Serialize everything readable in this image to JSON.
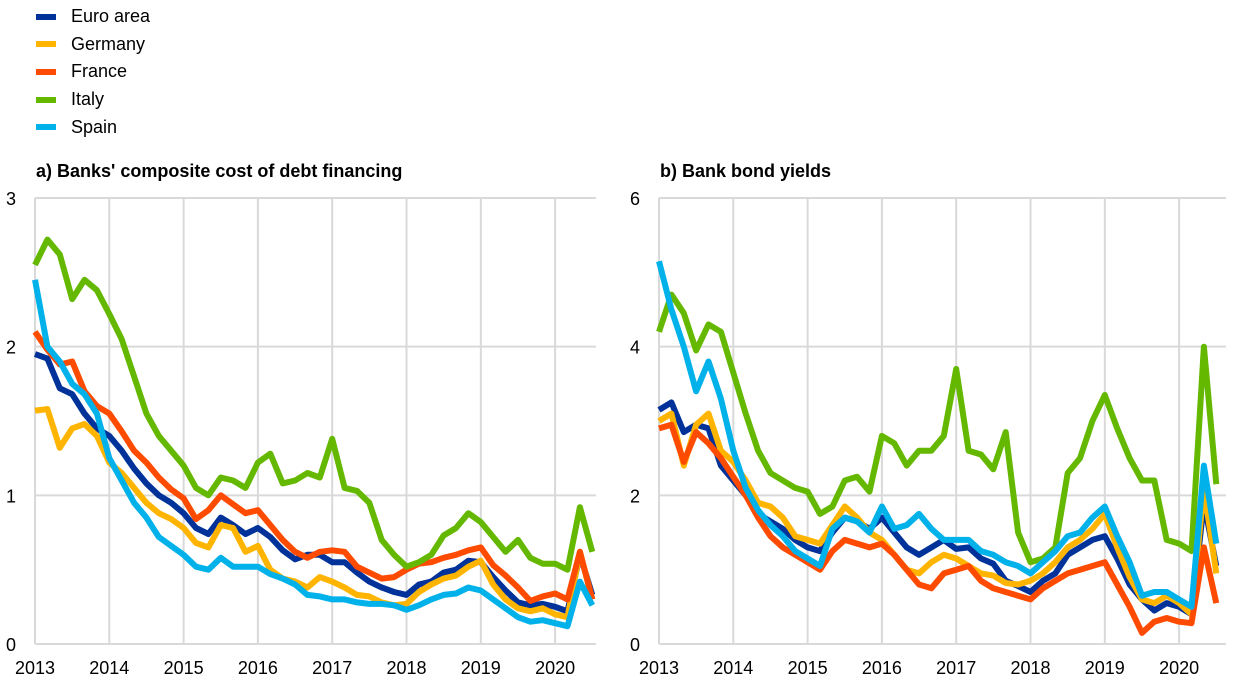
{
  "legend": [
    {
      "name": "Euro area",
      "color": "#003299"
    },
    {
      "name": "Germany",
      "color": "#FFB400"
    },
    {
      "name": "France",
      "color": "#FF4B00"
    },
    {
      "name": "Italy",
      "color": "#65B800"
    },
    {
      "name": "Spain",
      "color": "#00B1EA"
    }
  ],
  "chart_data": [
    {
      "type": "line",
      "title": "a) Banks' composite cost of debt financing",
      "xlabel": "",
      "ylabel": "",
      "xlim": [
        2013,
        2020.58
      ],
      "ylim": [
        0,
        3
      ],
      "xticks": [
        "2013",
        "2014",
        "2015",
        "2016",
        "2017",
        "2018",
        "2019",
        "2020"
      ],
      "yticks": [
        "0",
        "1",
        "2",
        "3"
      ],
      "grid": true,
      "legend_position": "top-left",
      "x_step_note": "bi-monthly from 2013.0",
      "series": [
        {
          "name": "Euro area",
          "values": [
            1.95,
            1.92,
            1.72,
            1.68,
            1.55,
            1.45,
            1.4,
            1.3,
            1.18,
            1.08,
            1.0,
            0.95,
            0.88,
            0.78,
            0.74,
            0.85,
            0.8,
            0.74,
            0.78,
            0.72,
            0.63,
            0.57,
            0.6,
            0.6,
            0.55,
            0.55,
            0.48,
            0.42,
            0.38,
            0.35,
            0.33,
            0.4,
            0.42,
            0.48,
            0.5,
            0.56,
            0.55,
            0.45,
            0.36,
            0.28,
            0.26,
            0.27,
            0.25,
            0.22,
            0.6,
            0.33
          ]
        },
        {
          "name": "Germany",
          "values": [
            1.57,
            1.58,
            1.32,
            1.45,
            1.48,
            1.4,
            1.22,
            1.15,
            1.05,
            0.95,
            0.88,
            0.84,
            0.78,
            0.68,
            0.65,
            0.8,
            0.78,
            0.62,
            0.66,
            0.5,
            0.44,
            0.42,
            0.38,
            0.45,
            0.42,
            0.38,
            0.33,
            0.32,
            0.28,
            0.26,
            0.27,
            0.35,
            0.4,
            0.44,
            0.46,
            0.52,
            0.56,
            0.4,
            0.3,
            0.24,
            0.22,
            0.24,
            0.2,
            0.18,
            0.62,
            0.3
          ]
        },
        {
          "name": "France",
          "values": [
            2.1,
            1.98,
            1.88,
            1.9,
            1.7,
            1.6,
            1.55,
            1.43,
            1.3,
            1.22,
            1.12,
            1.04,
            0.98,
            0.84,
            0.9,
            1.0,
            0.94,
            0.88,
            0.9,
            0.8,
            0.7,
            0.62,
            0.58,
            0.62,
            0.63,
            0.62,
            0.52,
            0.48,
            0.44,
            0.45,
            0.5,
            0.54,
            0.55,
            0.58,
            0.6,
            0.63,
            0.65,
            0.53,
            0.46,
            0.38,
            0.29,
            0.32,
            0.34,
            0.3,
            0.62,
            0.3
          ]
        },
        {
          "name": "Italy",
          "values": [
            2.55,
            2.72,
            2.62,
            2.32,
            2.45,
            2.38,
            2.22,
            2.05,
            1.8,
            1.55,
            1.4,
            1.3,
            1.2,
            1.05,
            1.0,
            1.12,
            1.1,
            1.05,
            1.22,
            1.28,
            1.08,
            1.1,
            1.15,
            1.12,
            1.38,
            1.05,
            1.03,
            0.95,
            0.7,
            0.6,
            0.52,
            0.55,
            0.6,
            0.73,
            0.78,
            0.88,
            0.82,
            0.72,
            0.62,
            0.7,
            0.58,
            0.54,
            0.54,
            0.5,
            0.92,
            0.62
          ]
        },
        {
          "name": "Spain",
          "values": [
            2.45,
            2.0,
            1.9,
            1.75,
            1.68,
            1.55,
            1.25,
            1.1,
            0.95,
            0.85,
            0.72,
            0.66,
            0.6,
            0.52,
            0.5,
            0.58,
            0.52,
            0.52,
            0.52,
            0.47,
            0.44,
            0.4,
            0.33,
            0.32,
            0.3,
            0.3,
            0.28,
            0.27,
            0.27,
            0.26,
            0.23,
            0.26,
            0.3,
            0.33,
            0.34,
            0.38,
            0.36,
            0.3,
            0.24,
            0.18,
            0.15,
            0.16,
            0.14,
            0.12,
            0.42,
            0.26
          ]
        }
      ]
    },
    {
      "type": "line",
      "title": "b) Bank bond yields",
      "xlabel": "",
      "ylabel": "",
      "xlim": [
        2013,
        2020.58
      ],
      "ylim": [
        0,
        6
      ],
      "xticks": [
        "2013",
        "2014",
        "2015",
        "2016",
        "2017",
        "2018",
        "2019",
        "2020"
      ],
      "yticks": [
        "0",
        "2",
        "4",
        "6"
      ],
      "grid": true,
      "x_step_note": "bi-monthly from 2013.0",
      "series": [
        {
          "name": "Euro area",
          "values": [
            3.15,
            3.25,
            2.85,
            2.95,
            2.9,
            2.4,
            2.2,
            2.0,
            1.75,
            1.65,
            1.55,
            1.4,
            1.3,
            1.25,
            1.5,
            1.7,
            1.65,
            1.55,
            1.7,
            1.5,
            1.3,
            1.2,
            1.3,
            1.4,
            1.28,
            1.3,
            1.15,
            1.08,
            0.85,
            0.78,
            0.7,
            0.85,
            0.95,
            1.2,
            1.3,
            1.4,
            1.45,
            1.15,
            0.8,
            0.6,
            0.45,
            0.55,
            0.5,
            0.4,
            1.9,
            1.05
          ]
        },
        {
          "name": "Germany",
          "values": [
            3.0,
            3.1,
            2.4,
            2.95,
            3.1,
            2.6,
            2.45,
            2.2,
            1.9,
            1.85,
            1.7,
            1.45,
            1.4,
            1.35,
            1.6,
            1.85,
            1.7,
            1.5,
            1.4,
            1.2,
            1.0,
            0.95,
            1.1,
            1.2,
            1.15,
            1.05,
            0.95,
            0.92,
            0.82,
            0.8,
            0.85,
            0.95,
            1.1,
            1.3,
            1.4,
            1.55,
            1.75,
            1.3,
            0.9,
            0.6,
            0.55,
            0.65,
            0.55,
            0.4,
            2.1,
            0.95
          ]
        },
        {
          "name": "France",
          "values": [
            2.9,
            2.95,
            2.45,
            2.85,
            2.7,
            2.5,
            2.25,
            2.0,
            1.7,
            1.45,
            1.3,
            1.2,
            1.1,
            1.0,
            1.25,
            1.4,
            1.35,
            1.3,
            1.35,
            1.2,
            1.0,
            0.8,
            0.75,
            0.95,
            1.0,
            1.05,
            0.85,
            0.75,
            0.7,
            0.65,
            0.6,
            0.75,
            0.85,
            0.95,
            1.0,
            1.05,
            1.1,
            0.8,
            0.5,
            0.15,
            0.3,
            0.35,
            0.3,
            0.28,
            1.3,
            0.55
          ]
        },
        {
          "name": "Italy",
          "values": [
            4.2,
            4.7,
            4.45,
            3.95,
            4.3,
            4.2,
            3.65,
            3.1,
            2.6,
            2.3,
            2.2,
            2.1,
            2.05,
            1.75,
            1.85,
            2.2,
            2.25,
            2.05,
            2.8,
            2.7,
            2.4,
            2.6,
            2.6,
            2.8,
            3.7,
            2.6,
            2.55,
            2.35,
            2.85,
            1.5,
            1.1,
            1.15,
            1.3,
            2.3,
            2.5,
            3.0,
            3.35,
            2.9,
            2.5,
            2.2,
            2.2,
            1.4,
            1.35,
            1.25,
            4.0,
            2.15
          ]
        },
        {
          "name": "Spain",
          "values": [
            5.15,
            4.5,
            4.0,
            3.4,
            3.8,
            3.3,
            2.6,
            2.1,
            1.8,
            1.6,
            1.45,
            1.25,
            1.15,
            1.05,
            1.55,
            1.7,
            1.65,
            1.5,
            1.85,
            1.55,
            1.6,
            1.75,
            1.55,
            1.4,
            1.4,
            1.4,
            1.25,
            1.2,
            1.1,
            1.05,
            0.95,
            1.1,
            1.25,
            1.45,
            1.5,
            1.7,
            1.85,
            1.45,
            1.1,
            0.65,
            0.7,
            0.7,
            0.6,
            0.5,
            2.4,
            1.35
          ]
        }
      ]
    }
  ]
}
